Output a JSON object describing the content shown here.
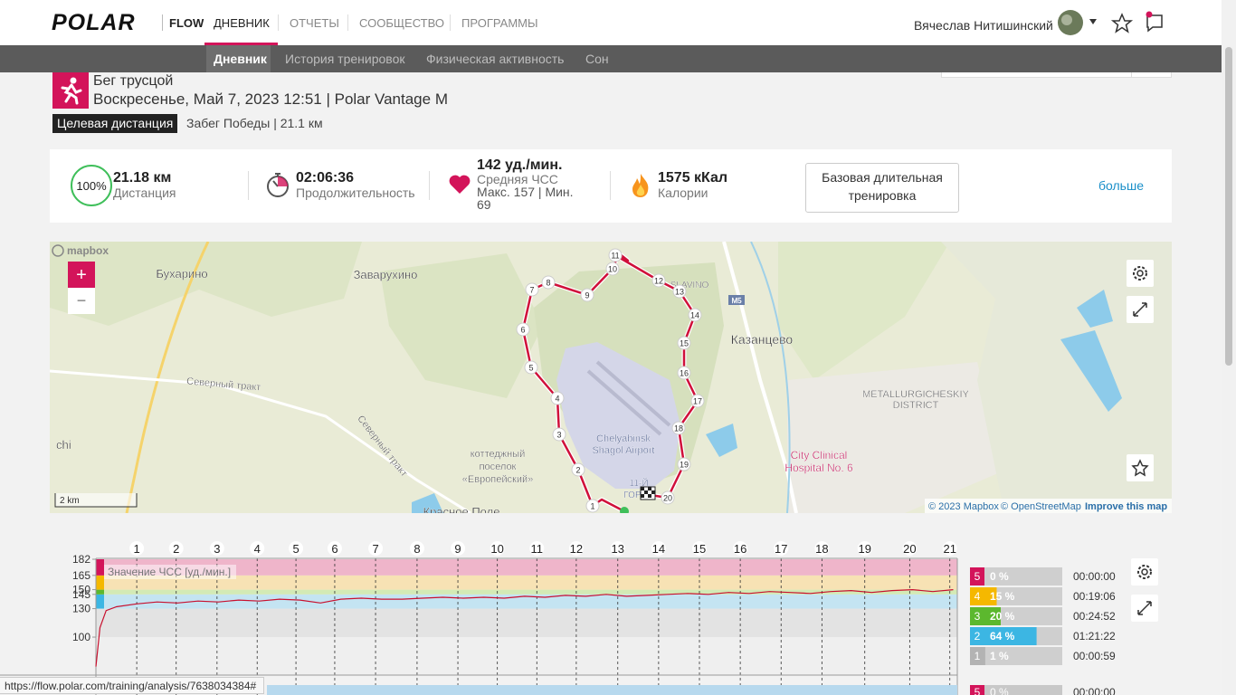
{
  "nav": {
    "logo": "POLAR",
    "product": "FLOW",
    "items": [
      "ДНЕВНИК",
      "ОТЧЕТЫ",
      "СООБЩЕСТВО",
      "ПРОГРАММЫ"
    ],
    "user": "Вячеслав Нитишинский"
  },
  "subnav": [
    "Дневник",
    "История тренировок",
    "Физическая активность",
    "Сон"
  ],
  "activity": {
    "sport": "Бег трусцой",
    "datetime": "Воскресенье, Май 7, 2023 12:51 | Polar Vantage M",
    "target_badge": "Целевая дистанция",
    "target": "Забег Победы | 21.1 км"
  },
  "stats": {
    "progress": "100%",
    "distance": "21.18 км",
    "distance_label": "Дистанция",
    "duration": "02:06:36",
    "duration_label": "Продолжительность",
    "hr": "142 уд./мин.",
    "hr_label": "Средняя ЧСС",
    "hr_range": "Макс. 157  |  Мин. 69",
    "calories": "1575 кКал",
    "calories_label": "Калории",
    "benefit": "Базовая длительная тренировка",
    "more": "больше"
  },
  "map": {
    "logo": "mapbox",
    "labels": [
      "Бухарино",
      "Заварухино",
      "Казанцево",
      "Северный тракт",
      "Северный тракт",
      "коттеджный",
      "поселок",
      "«Европейский»",
      "Chelyabinsk",
      "Shagol Airport",
      "METALLURGICHESKIY",
      "DISTRICT",
      "City Clinical",
      "Hospital No. 6",
      "SLAVINO",
      "M5",
      "chi",
      "11-Й",
      "ГОРОД",
      "Красное Поле"
    ],
    "route_markers": [
      "1",
      "2",
      "3",
      "4",
      "5",
      "6",
      "7",
      "8",
      "9",
      "10",
      "11",
      "12",
      "13",
      "14",
      "15",
      "16",
      "17",
      "18",
      "19",
      "20"
    ],
    "scale": "2 km",
    "attribution": "© 2023 Mapbox",
    "osm": "© OpenStreetMap",
    "improve": "Improve this map",
    "zoom_in": "+",
    "zoom_out": "−"
  },
  "chart_data": {
    "type": "line",
    "label": "Значение ЧСС [уд./мин.]",
    "xlim": [
      0,
      126.6
    ],
    "ylim": [
      60,
      182
    ],
    "yticks": [
      100,
      130,
      145,
      150,
      165,
      182
    ],
    "band_colors": [
      "#e3e3e3",
      "#c4e4f2",
      "#d3eab5",
      "#f7e2b4",
      "#efb5ca"
    ],
    "edge_colors": [
      "#3cb6e3",
      "#5cb82e",
      "#f5b800",
      "#d3145a"
    ],
    "km_labels": [
      "1",
      "2",
      "3",
      "4",
      "5",
      "6",
      "7",
      "8",
      "9",
      "10",
      "11",
      "12",
      "13",
      "14",
      "15",
      "16",
      "17",
      "18",
      "19",
      "20",
      "21"
    ],
    "km_times": [
      6.0,
      11.8,
      17.8,
      23.7,
      29.4,
      35.1,
      41.1,
      47.2,
      53.2,
      59.0,
      64.8,
      70.6,
      76.7,
      82.7,
      88.7,
      94.7,
      100.7,
      106.7,
      113.0,
      119.6,
      125.5
    ],
    "series": [
      {
        "name": "ЧСС",
        "color": "#c8102e",
        "x": [
          0,
          0.6,
          1.5,
          3,
          6,
          9,
          12,
          15,
          18,
          21,
          24,
          27,
          30,
          33,
          36,
          39,
          42,
          45,
          48,
          51,
          54,
          57,
          60,
          63,
          66,
          69,
          72,
          75,
          78,
          81,
          84,
          87,
          90,
          93,
          96,
          99,
          102,
          105,
          108,
          111,
          114,
          117,
          120,
          123,
          126
        ],
        "values": [
          69,
          110,
          128,
          132,
          135,
          137,
          136,
          138,
          137,
          139,
          138,
          140,
          139,
          136,
          140,
          141,
          140,
          140,
          141,
          142,
          141,
          142,
          141,
          143,
          142,
          144,
          143,
          145,
          143,
          144,
          145,
          146,
          145,
          147,
          146,
          148,
          147,
          146,
          148,
          149,
          147,
          149,
          150,
          148,
          150
        ]
      }
    ],
    "zones": {
      "names": [
        "5",
        "4",
        "3",
        "2",
        "1"
      ],
      "colors": [
        "#d3145a",
        "#f5b800",
        "#5cb82e",
        "#3cb6e3",
        "#b3b3b3"
      ],
      "values": [
        0,
        15,
        20,
        64,
        1
      ],
      "value_labels": [
        "0 %",
        "15 %",
        "20 %",
        "64 %",
        "1 %"
      ],
      "times": [
        "00:00:00",
        "00:19:06",
        "00:24:52",
        "01:21:22",
        "00:00:59"
      ]
    }
  },
  "chart2_peek": {
    "zone": "5",
    "pct": "0 %",
    "time": "00:00:00"
  },
  "status_url": "https://flow.polar.com/training/analysis/7638034384#"
}
